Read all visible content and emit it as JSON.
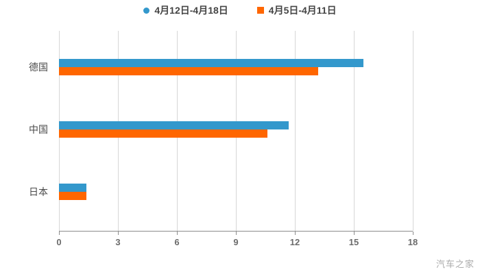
{
  "chart_data": {
    "type": "bar",
    "orientation": "horizontal",
    "title": "",
    "categories": [
      "德国",
      "中国",
      "日本"
    ],
    "series": [
      {
        "name": "4月12日-4月18日",
        "color": "#3398cc",
        "marker": "circle",
        "values": [
          15.5,
          11.7,
          1.4
        ]
      },
      {
        "name": "4月5日-4月11日",
        "color": "#ff6600",
        "marker": "square",
        "values": [
          13.2,
          10.6,
          1.4
        ]
      }
    ],
    "xlim": [
      0,
      18
    ],
    "xticks": [
      0,
      3,
      6,
      9,
      12,
      15,
      18
    ],
    "grid": "vertical-only",
    "legend_position": "top-center",
    "axis_line_color": "#8c8c8c",
    "gridline_color": "#d6d6d6"
  },
  "watermark": "汽车之家"
}
